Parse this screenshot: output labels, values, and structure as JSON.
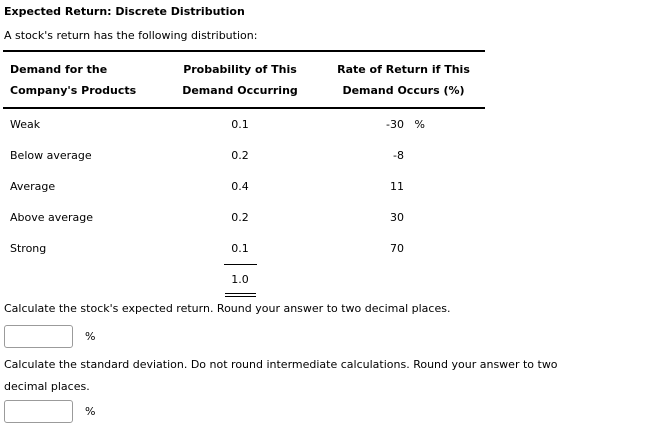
{
  "page": {
    "title": "Expected Return: Discrete Distribution",
    "intro": "A stock's return has the following distribution:"
  },
  "colors": {
    "text": "#000000",
    "table_rule": "#000000",
    "input_border": "#9b9b9b",
    "background": "#ffffff"
  },
  "table": {
    "headers": [
      {
        "line1": "Demand for the",
        "line2": "Company's Products"
      },
      {
        "line1": "Probability of This",
        "line2": "Demand Occurring"
      },
      {
        "line1": "Rate of Return if This",
        "line2": "Demand Occurs (%)"
      }
    ],
    "rows": [
      {
        "demand": "Weak",
        "probability": "0.1",
        "rate": "-30",
        "unit": "%"
      },
      {
        "demand": "Below average",
        "probability": "0.2",
        "rate": "-8"
      },
      {
        "demand": "Average",
        "probability": "0.4",
        "rate": "11"
      },
      {
        "demand": "Above average",
        "probability": "0.2",
        "rate": "30"
      },
      {
        "demand": "Strong",
        "probability": "0.1",
        "rate": "70"
      }
    ],
    "probability_total": "1.0"
  },
  "questions": [
    {
      "prompt": "Calculate the stock's expected return. Round your answer to two decimal places.",
      "value": "",
      "unit": "%"
    },
    {
      "prompt_line1": "Calculate the standard deviation. Do not round intermediate calculations. Round your answer to two",
      "prompt_line2": "decimal places.",
      "value": "",
      "unit": "%"
    }
  ]
}
